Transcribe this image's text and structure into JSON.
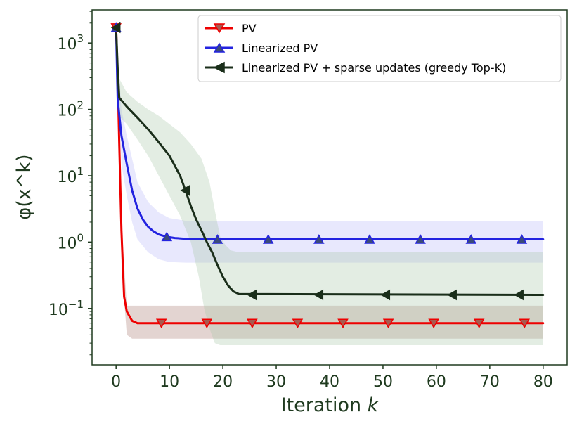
{
  "chart_data": {
    "type": "line",
    "yscale": "log",
    "title": "",
    "xlabel": "Iteration",
    "xlabel_var": "k",
    "ylabel": "φ(x^k)",
    "xlim": [
      -4.5,
      84.5
    ],
    "ylim_log10": [
      -1.85,
      3.5
    ],
    "x_ticks": [
      0,
      10,
      20,
      30,
      40,
      50,
      60,
      70,
      80
    ],
    "x_tick_labels": [
      "0",
      "10",
      "20",
      "30",
      "40",
      "50",
      "60",
      "70",
      "80"
    ],
    "y_ticks_log10": [
      -1,
      0,
      1,
      2,
      3
    ],
    "y_tick_labels": [
      {
        "base": "10",
        "exp": "−1"
      },
      {
        "base": "10",
        "exp": "0"
      },
      {
        "base": "10",
        "exp": "1"
      },
      {
        "base": "10",
        "exp": "2"
      },
      {
        "base": "10",
        "exp": "3"
      }
    ],
    "legend_position": "top-right",
    "series": [
      {
        "name": "PV",
        "color": "#ee0000",
        "band_color": "#a77a70",
        "marker": "triangle-down",
        "marker_face": "#a85a50",
        "line": [
          [
            0,
            1700
          ],
          [
            0.3,
            300
          ],
          [
            0.6,
            30
          ],
          [
            1,
            1.5
          ],
          [
            1.5,
            0.15
          ],
          [
            2,
            0.09
          ],
          [
            3,
            0.065
          ],
          [
            4,
            0.06
          ],
          [
            80,
            0.06
          ]
        ],
        "markers": [
          [
            0,
            1700
          ],
          [
            8.5,
            0.06
          ],
          [
            17,
            0.06
          ],
          [
            25.5,
            0.06
          ],
          [
            34,
            0.06
          ],
          [
            42.5,
            0.06
          ],
          [
            51,
            0.06
          ],
          [
            59.5,
            0.06
          ],
          [
            68,
            0.06
          ],
          [
            76.5,
            0.06
          ]
        ],
        "band_upper": [
          [
            0,
            1700
          ],
          [
            1,
            2
          ],
          [
            2,
            0.11
          ],
          [
            80,
            0.11
          ]
        ],
        "band_lower": [
          [
            0,
            1700
          ],
          [
            1,
            0.5
          ],
          [
            2,
            0.04
          ],
          [
            3,
            0.035
          ],
          [
            80,
            0.035
          ]
        ]
      },
      {
        "name": "Linearized PV",
        "color": "#2323e0",
        "band_color": "#b8b8f8",
        "marker": "triangle-up",
        "marker_face": "#3a4a7a",
        "line": [
          [
            0,
            1700
          ],
          [
            0.3,
            140
          ],
          [
            1,
            40
          ],
          [
            2,
            15
          ],
          [
            3,
            6
          ],
          [
            4,
            3.2
          ],
          [
            5,
            2.2
          ],
          [
            6,
            1.7
          ],
          [
            7,
            1.45
          ],
          [
            8,
            1.3
          ],
          [
            9.5,
            1.2
          ],
          [
            11,
            1.15
          ],
          [
            13,
            1.12
          ],
          [
            80,
            1.1
          ]
        ],
        "markers": [
          [
            0,
            1700
          ],
          [
            9.5,
            1.2
          ],
          [
            19,
            1.1
          ],
          [
            28.5,
            1.1
          ],
          [
            38,
            1.1
          ],
          [
            47.5,
            1.1
          ],
          [
            57,
            1.1
          ],
          [
            66.5,
            1.1
          ],
          [
            76,
            1.1
          ]
        ],
        "band_upper": [
          [
            0,
            1700
          ],
          [
            1,
            100
          ],
          [
            2,
            40
          ],
          [
            3,
            18
          ],
          [
            4,
            8
          ],
          [
            6,
            4
          ],
          [
            8,
            2.8
          ],
          [
            10,
            2.3
          ],
          [
            13,
            2.1
          ],
          [
            80,
            2.1
          ]
        ],
        "band_lower": [
          [
            0,
            1700
          ],
          [
            1,
            15
          ],
          [
            2,
            5
          ],
          [
            3,
            2
          ],
          [
            4,
            1.1
          ],
          [
            6,
            0.7
          ],
          [
            8,
            0.55
          ],
          [
            10,
            0.5
          ],
          [
            13,
            0.49
          ],
          [
            80,
            0.49
          ]
        ]
      },
      {
        "name": "Linearized PV + sparse updates (greedy Top-K)",
        "color": "#1a2e1a",
        "band_color": "#a8c8a8",
        "marker": "triangle-left",
        "marker_face": "#1a2e1a",
        "line": [
          [
            0,
            1700
          ],
          [
            0.3,
            400
          ],
          [
            0.6,
            150
          ],
          [
            2,
            110
          ],
          [
            4,
            75
          ],
          [
            6,
            50
          ],
          [
            8,
            32
          ],
          [
            10,
            20
          ],
          [
            12,
            10
          ],
          [
            13,
            6
          ],
          [
            14,
            3.5
          ],
          [
            15,
            2.2
          ],
          [
            16,
            1.5
          ],
          [
            17,
            1.0
          ],
          [
            18,
            0.7
          ],
          [
            19,
            0.45
          ],
          [
            20,
            0.3
          ],
          [
            21,
            0.22
          ],
          [
            22,
            0.18
          ],
          [
            23,
            0.165
          ],
          [
            80,
            0.16
          ]
        ],
        "markers": [
          [
            0,
            1700
          ],
          [
            13,
            6
          ],
          [
            25.5,
            0.16
          ],
          [
            38,
            0.16
          ],
          [
            50.5,
            0.16
          ],
          [
            63,
            0.16
          ],
          [
            75.5,
            0.16
          ]
        ],
        "band_upper": [
          [
            0,
            1700
          ],
          [
            0.5,
            300
          ],
          [
            2,
            180
          ],
          [
            4,
            130
          ],
          [
            6,
            100
          ],
          [
            8,
            80
          ],
          [
            10,
            60
          ],
          [
            12,
            45
          ],
          [
            14,
            30
          ],
          [
            16,
            18
          ],
          [
            17.5,
            8
          ],
          [
            18.5,
            3
          ],
          [
            19.5,
            1.2
          ],
          [
            20.5,
            0.9
          ],
          [
            21.5,
            0.75
          ],
          [
            23,
            0.7
          ],
          [
            80,
            0.7
          ]
        ],
        "band_lower": [
          [
            0,
            1700
          ],
          [
            0.5,
            80
          ],
          [
            2,
            60
          ],
          [
            4,
            35
          ],
          [
            6,
            20
          ],
          [
            8,
            10
          ],
          [
            10,
            5
          ],
          [
            12,
            2.5
          ],
          [
            14,
            1.0
          ],
          [
            15.5,
            0.3
          ],
          [
            16.5,
            0.1
          ],
          [
            17.5,
            0.05
          ],
          [
            18.5,
            0.03
          ],
          [
            19.5,
            0.028
          ],
          [
            80,
            0.028
          ]
        ]
      }
    ]
  }
}
